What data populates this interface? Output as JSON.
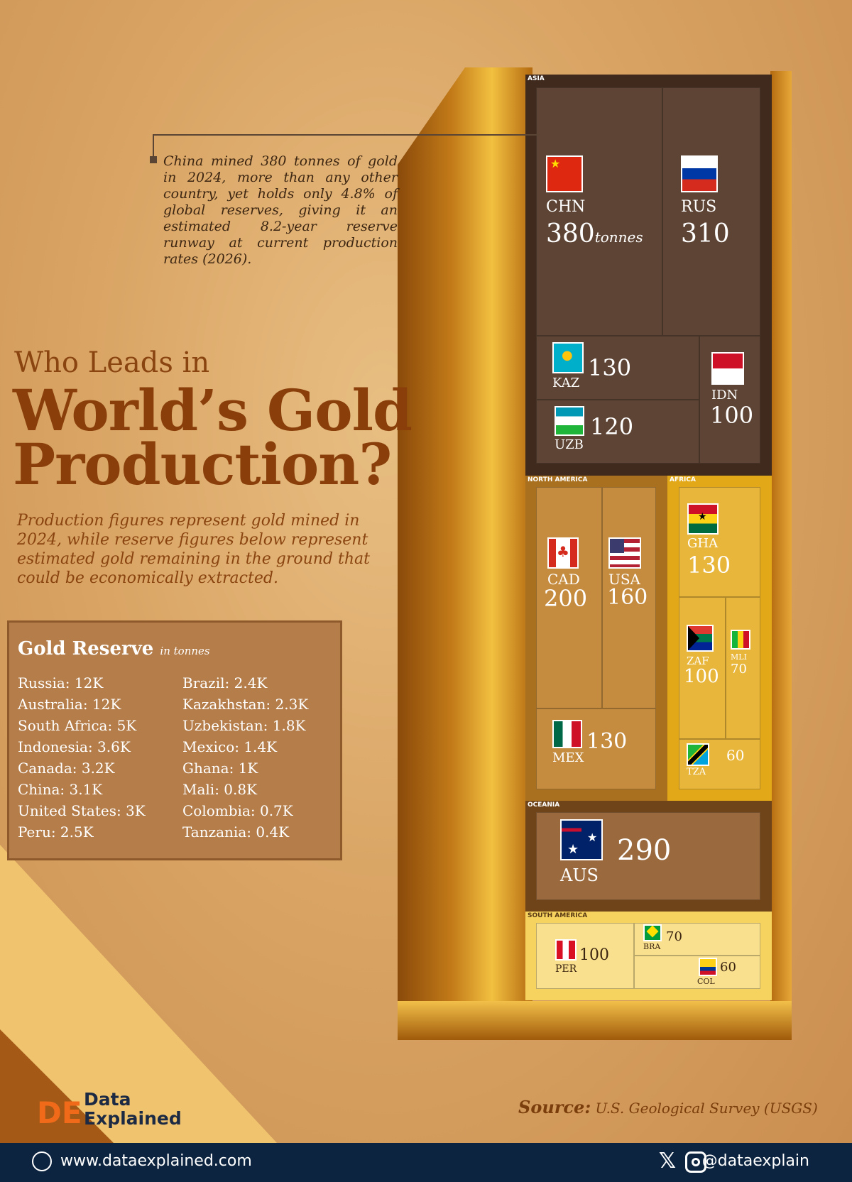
{
  "title_small": "Who Leads in",
  "title_big_1": "World’s Gold",
  "title_big_2": "Production?",
  "subtitle": "Production figures represent gold mined in 2024, while reserve figures below represent estimated gold remaining in the ground that could be economically extracted.",
  "annotation": "China mined 380 tonnes of gold in 2024, more than any other country, yet holds only 4.8% of global reserves, giving it an estimated 8.2-year reserve runway at current production rates (2026).",
  "reserve": {
    "title": "Gold Reserve",
    "unit": "in tonnes",
    "col1": [
      "Russia: 12K",
      "Australia: 12K",
      "South Africa: 5K",
      "Indonesia: 3.6K",
      "Canada: 3.2K",
      "China: 3.1K",
      "United States: 3K",
      "Peru: 2.5K"
    ],
    "col2": [
      "Brazil: 2.4K",
      "Kazakhstan: 2.3K",
      "Uzbekistan: 1.8K",
      "Mexico: 1.4K",
      "Ghana: 1K",
      "Mali: 0.8K",
      "Colombia: 0.7K",
      "Tanzania: 0.4K"
    ]
  },
  "chart_data": {
    "type": "treemap",
    "unit": "tonnes",
    "regions": [
      {
        "name": "ASIA",
        "countries": [
          {
            "code": "CHN",
            "value": 380
          },
          {
            "code": "RUS",
            "value": 310
          },
          {
            "code": "KAZ",
            "value": 130
          },
          {
            "code": "UZB",
            "value": 120
          },
          {
            "code": "IDN",
            "value": 100
          }
        ]
      },
      {
        "name": "NORTH AMERICA",
        "countries": [
          {
            "code": "CAD",
            "value": 200
          },
          {
            "code": "USA",
            "value": 160
          },
          {
            "code": "MEX",
            "value": 130
          }
        ]
      },
      {
        "name": "AFRICA",
        "countries": [
          {
            "code": "GHA",
            "value": 130
          },
          {
            "code": "ZAF",
            "value": 100
          },
          {
            "code": "MLI",
            "value": 70
          },
          {
            "code": "TZA",
            "value": 60
          }
        ]
      },
      {
        "name": "OCEANIA",
        "countries": [
          {
            "code": "AUS",
            "value": 290
          }
        ]
      },
      {
        "name": "SOUTH AMERICA",
        "countries": [
          {
            "code": "PER",
            "value": 100
          },
          {
            "code": "BRA",
            "value": 70
          },
          {
            "code": "COL",
            "value": 60
          }
        ]
      }
    ]
  },
  "source_label": "Source:",
  "source_text": "U.S. Geological Survey (USGS)",
  "brand_1": "Data",
  "brand_2": "Explained",
  "logo_text": "DE",
  "website": "www.dataexplained.com",
  "handle": "@dataexplain",
  "colors": {
    "asia": "#5e4434",
    "asia_border": "#3f2a1d",
    "na": "#c58c40",
    "na_border": "#a8701f",
    "africa": "#e8b63a",
    "africa_border": "#e2a818",
    "oceania": "#9a6a3e",
    "oceania_border": "#6f4418",
    "sa": "#f8e08e",
    "sa_border": "#f5d35e",
    "footer": "#0d2440"
  }
}
